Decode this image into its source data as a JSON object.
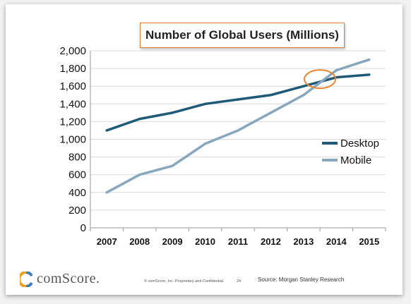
{
  "chart_data": {
    "type": "line",
    "title": "Number of Global Users (Millions)",
    "xlabel": "",
    "ylabel": "",
    "categories": [
      "2007",
      "2008",
      "2009",
      "2010",
      "2011",
      "2012",
      "2013",
      "2014",
      "2015"
    ],
    "ylim": [
      0,
      2000
    ],
    "yticks": [
      "0",
      "200",
      "400",
      "600",
      "800",
      "1,000",
      "1,200",
      "1,400",
      "1,600",
      "1,800",
      "2,000"
    ],
    "ytick_values": [
      0,
      200,
      400,
      600,
      800,
      1000,
      1200,
      1400,
      1600,
      1800,
      2000
    ],
    "grid": true,
    "legend_position": "right",
    "series": [
      {
        "name": "Desktop",
        "color": "#1f5a78",
        "values": [
          1100,
          1230,
          1300,
          1400,
          1450,
          1500,
          1600,
          1700,
          1730
        ]
      },
      {
        "name": "Mobile",
        "color": "#86a7be",
        "values": [
          400,
          600,
          700,
          950,
          1100,
          1300,
          1500,
          1780,
          1900
        ]
      }
    ],
    "annotation": {
      "type": "ellipse",
      "color": "#e8852f",
      "x": 2013.5,
      "y": 1680
    }
  },
  "footer": {
    "logo_text": "comScore.",
    "logo_icon": "comscore-logo-icon",
    "confidential": "© comScore, Inc. Proprietary and Confidential.",
    "page_number": "24",
    "source": "Source: Morgan Stanley Research"
  }
}
